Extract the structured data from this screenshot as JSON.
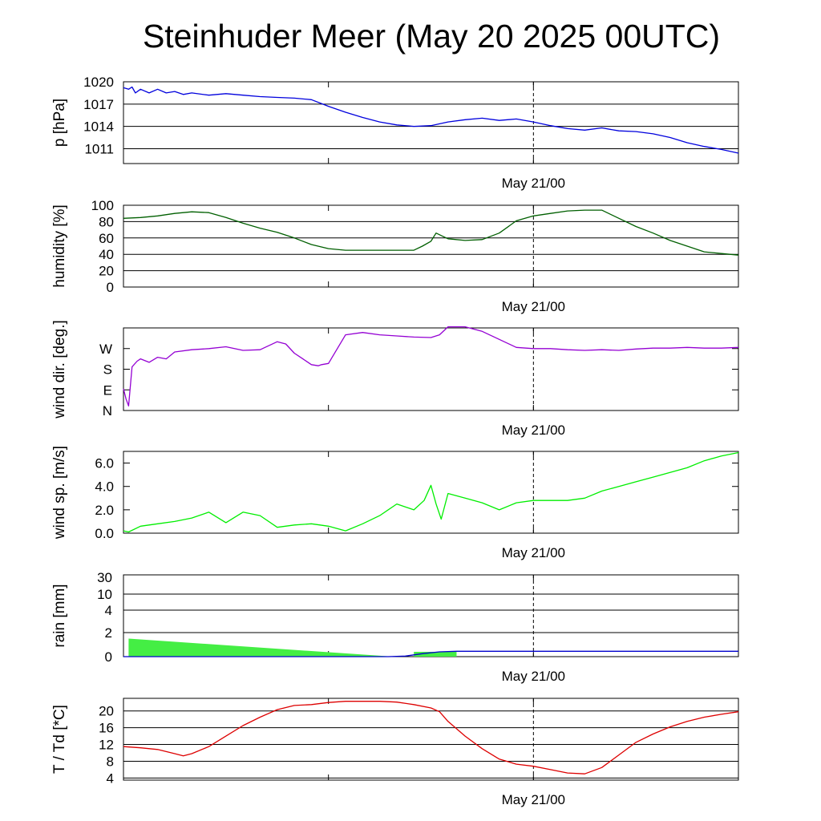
{
  "title": "Steinhuder Meer (May 20 2025 00UTC)",
  "colors": {
    "pressure": "#0000dd",
    "humidity": "#005f00",
    "wind_direction": "#9400d3",
    "wind_speed": "#00ee00",
    "rain_bar": "#44ee44",
    "rain_line": "#0000cc",
    "temperature": "#dd0000",
    "dewpoint": "#0000cc"
  },
  "chart_data": [
    {
      "type": "line",
      "ylabel": "p [hPa]",
      "xtick_label": "May 21/00",
      "ylim": [
        1009,
        1020
      ],
      "y_ticks": [
        1020,
        1017,
        1014,
        1011
      ],
      "x_range": [
        0,
        36
      ],
      "series": [
        {
          "color": "#0000dd",
          "x": [
            0,
            0.3,
            0.5,
            0.7,
            1,
            1.5,
            2,
            2.5,
            3,
            3.5,
            4,
            5,
            6,
            7,
            8,
            9,
            10,
            11,
            12,
            13,
            14,
            15,
            16,
            17,
            18,
            19,
            20,
            21,
            22,
            23,
            24,
            25,
            26,
            27,
            28,
            29,
            30,
            31,
            32,
            33,
            34,
            35,
            36
          ],
          "y": [
            1019.2,
            1019.0,
            1019.3,
            1018.5,
            1019.0,
            1018.5,
            1019.0,
            1018.5,
            1018.7,
            1018.3,
            1018.5,
            1018.2,
            1018.4,
            1018.2,
            1018.0,
            1017.9,
            1017.8,
            1017.6,
            1016.7,
            1015.9,
            1015.2,
            1014.6,
            1014.2,
            1014.0,
            1014.1,
            1014.6,
            1014.9,
            1015.1,
            1014.8,
            1015.0,
            1014.6,
            1014.1,
            1013.7,
            1013.5,
            1013.8,
            1013.4,
            1013.3,
            1013.0,
            1012.5,
            1011.8,
            1011.3,
            1010.9,
            1010.4
          ]
        }
      ]
    },
    {
      "type": "line",
      "ylabel": "humidity [%]",
      "xtick_label": "May 21/00",
      "ylim": [
        0,
        100
      ],
      "y_ticks": [
        100,
        80,
        60,
        40,
        20,
        0
      ],
      "x_range": [
        0,
        36
      ],
      "series": [
        {
          "color": "#005f00",
          "x": [
            0,
            1,
            2,
            3,
            4,
            5,
            6,
            7,
            8,
            9,
            10,
            11,
            12,
            13,
            14,
            15,
            16,
            17,
            17.5,
            18,
            18.3,
            18.7,
            19,
            20,
            21,
            22,
            23,
            24,
            25,
            26,
            27,
            28,
            29,
            30,
            31,
            32,
            33,
            34,
            35,
            36
          ],
          "y": [
            84,
            85,
            87,
            90,
            92,
            91,
            85,
            78,
            72,
            67,
            60,
            52,
            47,
            45,
            45,
            45,
            45,
            45,
            50,
            56,
            66,
            62,
            59,
            57,
            58,
            66,
            81,
            87,
            90,
            93,
            94,
            94,
            84,
            74,
            66,
            57,
            50,
            43,
            41,
            39
          ]
        }
      ]
    },
    {
      "type": "line",
      "ylabel": "wind dir. [deg.]",
      "xtick_label": "May 21/00",
      "ylim": [
        0,
        360
      ],
      "y_tick_labels": [
        "N",
        "E",
        "S",
        "W"
      ],
      "y_tick_values": [
        0,
        90,
        180,
        270
      ],
      "x_range": [
        0,
        36
      ],
      "series": [
        {
          "color": "#9400d3",
          "x": [
            0,
            0.15,
            0.3,
            0.5,
            0.8,
            1,
            1.5,
            2,
            2.5,
            3,
            4,
            5,
            6,
            7,
            8,
            9,
            9.5,
            10,
            10.5,
            11,
            11.4,
            11.6,
            12,
            13,
            14,
            15,
            16,
            17,
            18,
            18.5,
            19,
            20,
            21,
            22,
            23,
            24,
            25,
            26,
            27,
            28,
            29,
            30,
            31,
            32,
            33,
            34,
            35,
            36
          ],
          "y": [
            95,
            50,
            20,
            190,
            215,
            225,
            210,
            232,
            225,
            255,
            265,
            270,
            278,
            262,
            265,
            300,
            290,
            250,
            225,
            200,
            195,
            200,
            205,
            330,
            340,
            330,
            325,
            320,
            318,
            330,
            365,
            365,
            345,
            310,
            275,
            270,
            270,
            265,
            262,
            265,
            262,
            268,
            272,
            272,
            275,
            272,
            272,
            275
          ]
        }
      ]
    },
    {
      "type": "line",
      "ylabel": "wind sp. [m/s]",
      "xtick_label": "May 21/00",
      "ylim": [
        0,
        7
      ],
      "y_ticks": [
        6.0,
        4.0,
        2.0,
        0.0
      ],
      "x_range": [
        0,
        36
      ],
      "series": [
        {
          "color": "#00ee00",
          "x": [
            0,
            0.3,
            1,
            2,
            3,
            4,
            5,
            6,
            7,
            8,
            9,
            10,
            11,
            12,
            13,
            14,
            15,
            16,
            17,
            17.6,
            18,
            18.3,
            18.6,
            19,
            20,
            21,
            22,
            23,
            24,
            25,
            26,
            27,
            28,
            29,
            30,
            31,
            32,
            33,
            34,
            35,
            36
          ],
          "y": [
            0.2,
            0.1,
            0.6,
            0.8,
            1.0,
            1.3,
            1.8,
            0.9,
            1.8,
            1.5,
            0.5,
            0.7,
            0.8,
            0.6,
            0.2,
            0.8,
            1.5,
            2.5,
            2.0,
            2.8,
            4.1,
            2.5,
            1.2,
            3.4,
            3.0,
            2.6,
            2.0,
            2.6,
            2.8,
            2.8,
            2.8,
            3.0,
            3.6,
            4.0,
            4.4,
            4.8,
            5.2,
            5.6,
            6.2,
            6.6,
            6.9
          ]
        }
      ]
    },
    {
      "type": "bar",
      "ylabel": "rain [mm]",
      "xtick_label": "May 21/00",
      "y_tick_labels": [
        "30",
        "10",
        "4",
        "2",
        "0"
      ],
      "x_range": [
        0,
        36
      ],
      "bars": [
        {
          "x_start": 0.3,
          "x_end": 15.8,
          "y_start": 1.5,
          "y_end": 0.0
        },
        {
          "x_start": 17,
          "x_end": 19.5,
          "y_start": 0.4,
          "y_end": 0.4
        }
      ],
      "series": [
        {
          "color": "#0000cc",
          "x": [
            0,
            15.5,
            16.5,
            17.5,
            18.5,
            19.5,
            36
          ],
          "y": [
            0,
            0,
            0.05,
            0.25,
            0.4,
            0.45,
            0.45
          ]
        }
      ]
    },
    {
      "type": "line",
      "ylabel": "T / Td [*C]",
      "xtick_label": "May 21/00",
      "ylim": [
        3.5,
        23
      ],
      "y_ticks": [
        20,
        16,
        12,
        8,
        4
      ],
      "x_range": [
        0,
        36
      ],
      "series": [
        {
          "name": "T",
          "color": "#dd0000",
          "x": [
            0,
            1,
            2,
            3,
            3.5,
            4,
            5,
            6,
            7,
            8,
            9,
            10,
            11,
            12,
            13,
            14,
            15,
            16,
            17,
            18,
            18.5,
            19,
            20,
            21,
            22,
            23,
            24,
            25,
            26,
            27,
            28,
            29,
            30,
            31,
            32,
            33,
            34,
            35,
            36
          ],
          "y": [
            11.5,
            11.2,
            10.8,
            9.8,
            9.3,
            9.8,
            11.5,
            14,
            16.5,
            18.5,
            20.3,
            21.3,
            21.5,
            22.0,
            22.3,
            22.3,
            22.3,
            22.1,
            21.5,
            20.7,
            19.8,
            17.5,
            14,
            11,
            8.5,
            7.3,
            6.8,
            6.0,
            5.2,
            5.0,
            6.5,
            9.5,
            12.5,
            14.5,
            16.2,
            17.5,
            18.5,
            19.2,
            19.8
          ]
        }
      ]
    }
  ]
}
